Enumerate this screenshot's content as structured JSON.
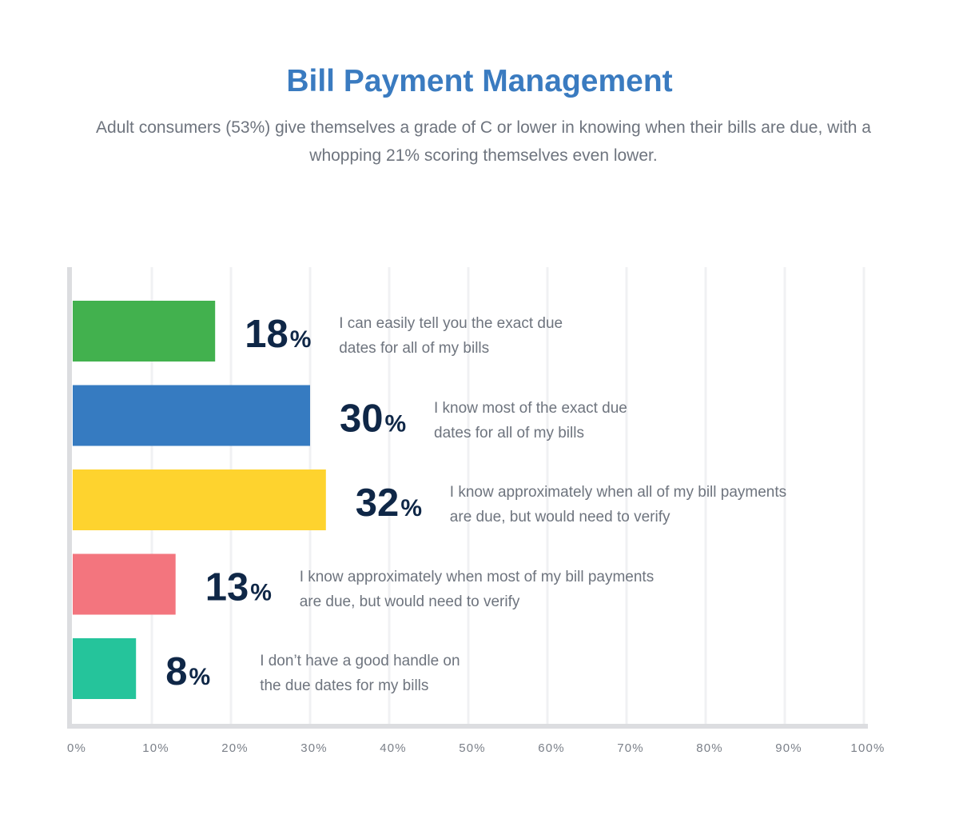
{
  "chart_data": {
    "type": "bar",
    "orientation": "horizontal",
    "title": "Bill Payment Management",
    "subtitle": "Adult consumers (53%) give themselves a grade of C or lower in knowing when their bills are due, with a whopping 21% scoring themselves even lower.",
    "xlim": [
      0,
      100
    ],
    "x_ticks": [
      "0%",
      "10%",
      "20%",
      "30%",
      "40%",
      "50%",
      "60%",
      "70%",
      "80%",
      "90%",
      "100%"
    ],
    "bars": [
      {
        "value": 18,
        "value_label": "18",
        "color": "#42b14e",
        "label_lines": [
          "I can easily tell you the exact due",
          "dates for all of my bills"
        ]
      },
      {
        "value": 30,
        "value_label": "30",
        "color": "#367bc1",
        "label_lines": [
          "I know most of the exact due",
          "dates for all of my bills"
        ]
      },
      {
        "value": 32,
        "value_label": "32",
        "color": "#fed32e",
        "label_lines": [
          "I know approximately when all of my bill payments",
          "are due, but would need to verify"
        ]
      },
      {
        "value": 13,
        "value_label": "13",
        "color": "#f3757e",
        "label_lines": [
          "I know approximately when most of my bill payments",
          "are due, but would need to verify"
        ]
      },
      {
        "value": 8,
        "value_label": "8",
        "color": "#25c49b",
        "label_lines": [
          "I don’t have a good handle on",
          "the due dates for my bills"
        ]
      }
    ],
    "percent_sign": "%",
    "grid": true,
    "legend": "none"
  }
}
